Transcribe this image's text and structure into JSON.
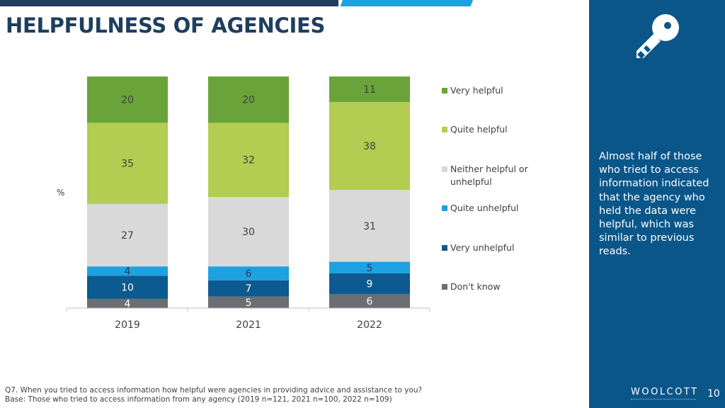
{
  "header": {
    "title": "HELPFULNESS OF AGENCIES"
  },
  "sidebar": {
    "text": "Almost half of those who tried to access information indicated that the agency who held the data were helpful, which was similar to previous reads.",
    "logo": "WOOLCOTT",
    "page_number": "10"
  },
  "footnote": {
    "question": "Q7. When you tried to access information how helpful were agencies in providing advice and assistance to you?",
    "base": "Base: Those who tried to access information from any agency (2019 n=121, 2021 n=100, 2022 n=109)"
  },
  "colors": {
    "title": "#1f3e5e",
    "panel": "#0a5689",
    "accent_bar": "#1ea1e0"
  },
  "chart_data": {
    "type": "bar",
    "stacked": true,
    "ylabel": "%",
    "categories": [
      "2019",
      "2021",
      "2022"
    ],
    "series": [
      {
        "name": "Don't know",
        "color": "#6b6e72",
        "values": [
          4,
          5,
          6
        ]
      },
      {
        "name": "Very unhelpful",
        "color": "#0c5a8f",
        "values": [
          10,
          7,
          9
        ]
      },
      {
        "name": "Quite unhelpful",
        "color": "#1ea1e0",
        "values": [
          4,
          6,
          5
        ]
      },
      {
        "name": "Neither helpful or unhelpful",
        "color": "#d9d9d9",
        "values": [
          27,
          30,
          31
        ]
      },
      {
        "name": "Quite helpful",
        "color": "#b3cc52",
        "values": [
          35,
          32,
          38
        ]
      },
      {
        "name": "Very helpful",
        "color": "#6aa33a",
        "values": [
          20,
          20,
          11
        ]
      }
    ],
    "legend_order": [
      "Very helpful",
      "Quite helpful",
      "Neither helpful or unhelpful",
      "Quite unhelpful",
      "Very unhelpful",
      "Don't know"
    ],
    "legend_position": "right"
  }
}
